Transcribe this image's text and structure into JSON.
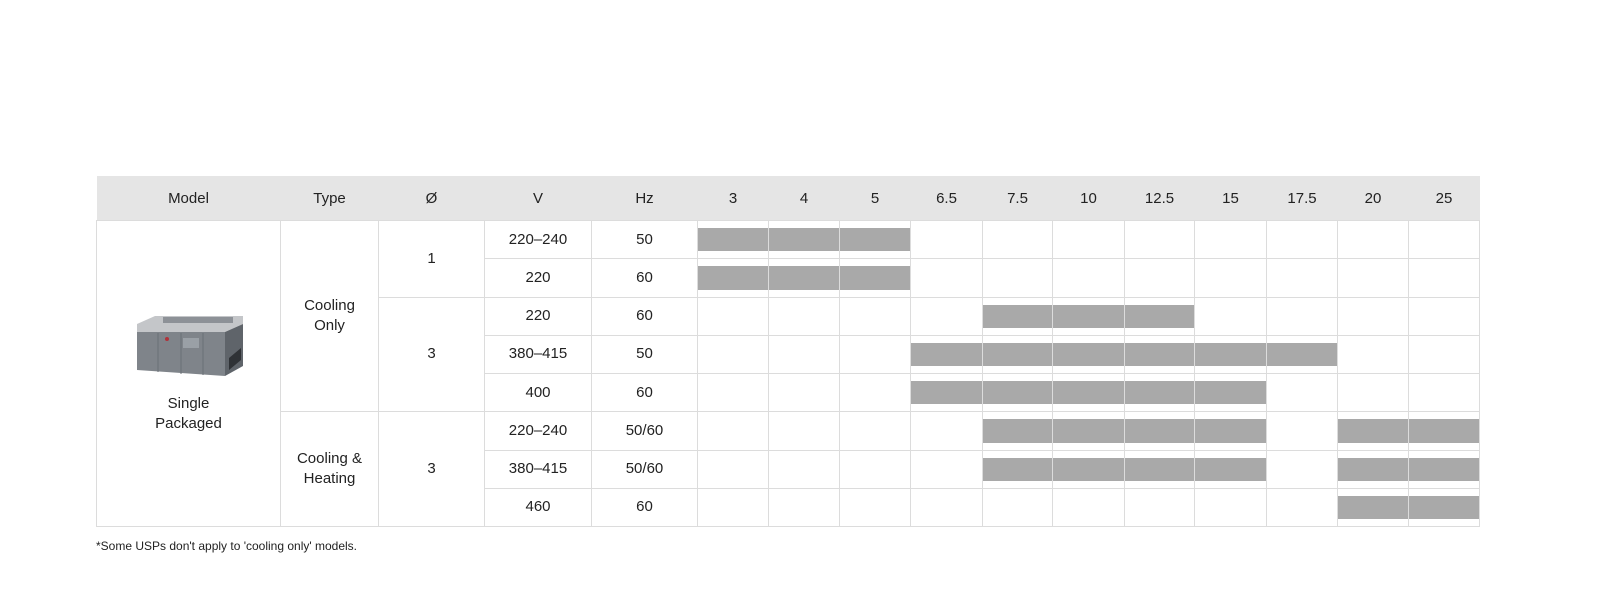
{
  "table": {
    "headers": {
      "model": "Model",
      "type": "Type",
      "phase": "Ø",
      "voltage": "V",
      "frequency": "Hz",
      "capacities": [
        "3",
        "4",
        "5",
        "6.5",
        "7.5",
        "10",
        "12.5",
        "15",
        "17.5",
        "20",
        "25"
      ]
    },
    "model_name": "Single Packaged",
    "model_image_icon": "single-packaged-rooftop-unit-image",
    "types": [
      "Cooling Only",
      "Cooling & Heating"
    ],
    "phases": [
      "1",
      "3",
      "3"
    ],
    "rows": [
      {
        "voltage": "220–240",
        "frequency": "50",
        "available": [
          1,
          1,
          1,
          0,
          0,
          0,
          0,
          0,
          0,
          0,
          0
        ]
      },
      {
        "voltage": "220",
        "frequency": "60",
        "available": [
          1,
          1,
          1,
          0,
          0,
          0,
          0,
          0,
          0,
          0,
          0
        ]
      },
      {
        "voltage": "220",
        "frequency": "60",
        "available": [
          0,
          0,
          0,
          0,
          1,
          1,
          1,
          0,
          0,
          0,
          0
        ]
      },
      {
        "voltage": "380–415",
        "frequency": "50",
        "available": [
          0,
          0,
          0,
          1,
          1,
          1,
          1,
          1,
          1,
          0,
          0
        ]
      },
      {
        "voltage": "400",
        "frequency": "60",
        "available": [
          0,
          0,
          0,
          1,
          1,
          1,
          1,
          1,
          0,
          0,
          0
        ]
      },
      {
        "voltage": "220–240",
        "frequency": "50/60",
        "available": [
          0,
          0,
          0,
          0,
          1,
          1,
          1,
          1,
          0,
          1,
          1
        ]
      },
      {
        "voltage": "380–415",
        "frequency": "50/60",
        "available": [
          0,
          0,
          0,
          0,
          1,
          1,
          1,
          1,
          0,
          1,
          1
        ]
      },
      {
        "voltage": "460",
        "frequency": "60",
        "available": [
          0,
          0,
          0,
          0,
          0,
          0,
          0,
          0,
          0,
          1,
          1
        ]
      }
    ],
    "bar_color": "#a9a9a9",
    "header_bg": "#e5e5e5"
  },
  "footnote": "*Some USPs don't apply to 'cooling only' models."
}
